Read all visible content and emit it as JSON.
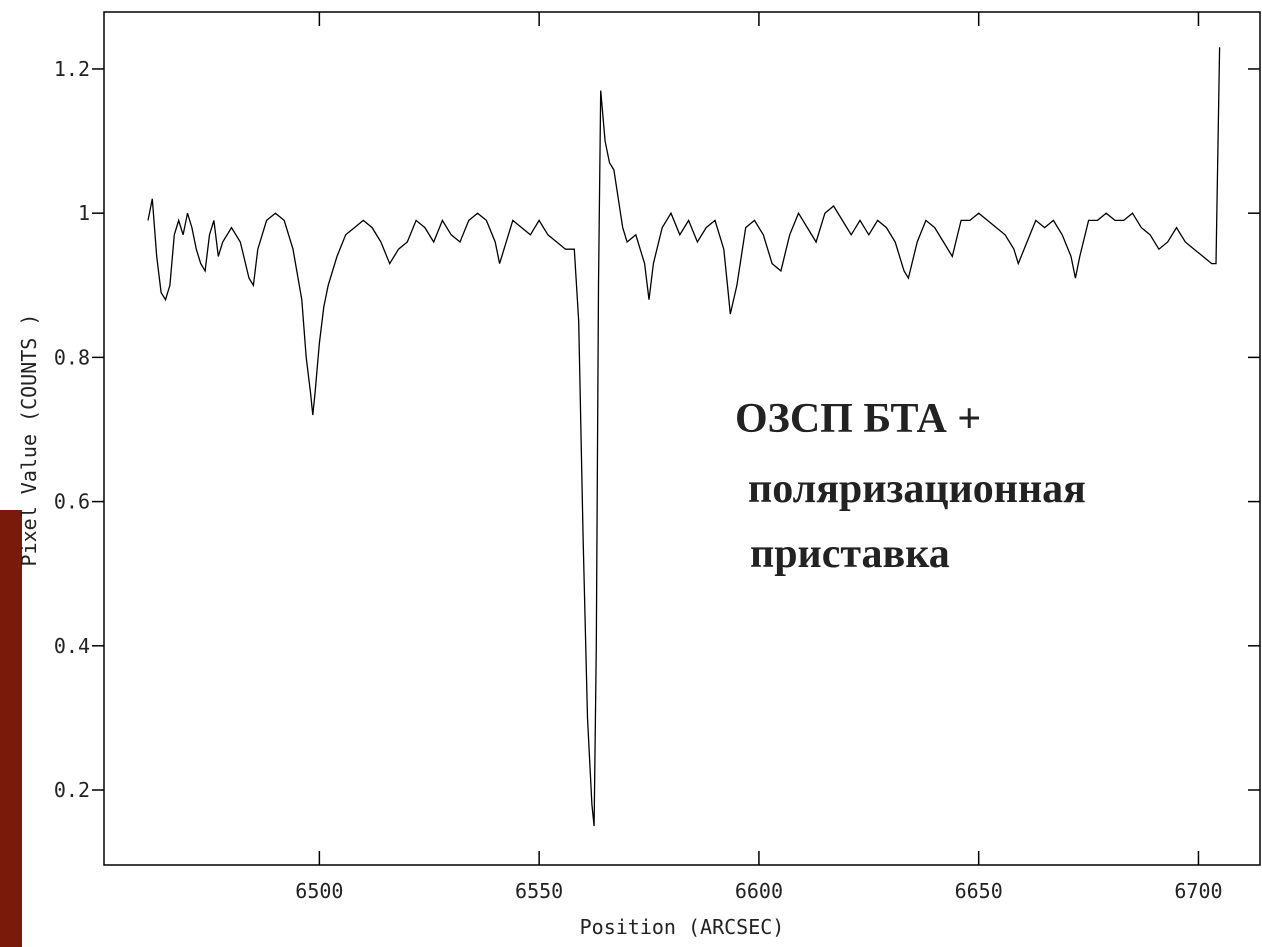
{
  "chart_data": {
    "type": "line",
    "x_label": "Position (ARCSEC)",
    "y_label": "Pixel Value (COUNTS )",
    "annotations": [
      "ОЗСП  БТА +",
      "поляризационная",
      "приставка"
    ],
    "xlim": [
      6451,
      6714
    ],
    "ylim": [
      0.096,
      1.279
    ],
    "xticks": [
      6500,
      6550,
      6600,
      6650,
      6700
    ],
    "yticks": [
      1.2,
      1,
      0.8,
      0.6,
      0.4,
      0.2
    ],
    "series": [
      {
        "color": "#000000",
        "x": [
          6461,
          6462,
          6463,
          6464,
          6465,
          6466,
          6467,
          6468,
          6469,
          6470,
          6471,
          6472,
          6473,
          6474,
          6475,
          6476,
          6477,
          6478,
          6480,
          6482,
          6484,
          6485,
          6486,
          6488,
          6490,
          6492,
          6494,
          6496,
          6497,
          6498,
          6498.5,
          6499,
          6500,
          6501,
          6502,
          6504,
          6506,
          6508,
          6510,
          6512,
          6514,
          6516,
          6518,
          6520,
          6522,
          6524,
          6526,
          6528,
          6530,
          6532,
          6534,
          6536,
          6538,
          6540,
          6541,
          6542,
          6544,
          6546,
          6548,
          6550,
          6552,
          6554,
          6556,
          6558,
          6559,
          6560,
          6561,
          6562,
          6562.5,
          6563,
          6563.5,
          6564,
          6565,
          6566,
          6567,
          6568,
          6569,
          6570,
          6572,
          6574,
          6575,
          6576,
          6578,
          6580,
          6582,
          6584,
          6586,
          6588,
          6590,
          6592,
          6593,
          6593.5,
          6595,
          6597,
          6599,
          6601,
          6603,
          6605,
          6607,
          6609,
          6611,
          6613,
          6615,
          6617,
          6619,
          6621,
          6623,
          6625,
          6627,
          6629,
          6631,
          6633,
          6634,
          6636,
          6638,
          6640,
          6642,
          6644,
          6646,
          6648,
          6650,
          6652,
          6654,
          6656,
          6658,
          6659,
          6661,
          6663,
          6665,
          6667,
          6669,
          6671,
          6672,
          6673,
          6675,
          6677,
          6679,
          6681,
          6683,
          6685,
          6687,
          6689,
          6691,
          6693,
          6695,
          6697,
          6699,
          6701,
          6703,
          6704,
          6704.8
        ],
        "values": [
          0.99,
          1.02,
          0.94,
          0.89,
          0.88,
          0.9,
          0.97,
          0.99,
          0.97,
          1.0,
          0.98,
          0.95,
          0.93,
          0.92,
          0.97,
          0.99,
          0.94,
          0.96,
          0.98,
          0.96,
          0.91,
          0.9,
          0.95,
          0.99,
          1.0,
          0.99,
          0.95,
          0.88,
          0.8,
          0.75,
          0.72,
          0.75,
          0.82,
          0.87,
          0.9,
          0.94,
          0.97,
          0.98,
          0.99,
          0.98,
          0.96,
          0.93,
          0.95,
          0.96,
          0.99,
          0.98,
          0.96,
          0.99,
          0.97,
          0.96,
          0.99,
          1.0,
          0.99,
          0.96,
          0.93,
          0.95,
          0.99,
          0.98,
          0.97,
          0.99,
          0.97,
          0.96,
          0.95,
          0.95,
          0.85,
          0.55,
          0.3,
          0.18,
          0.15,
          0.4,
          0.9,
          1.17,
          1.1,
          1.07,
          1.06,
          1.02,
          0.98,
          0.96,
          0.97,
          0.93,
          0.88,
          0.93,
          0.98,
          1.0,
          0.97,
          0.99,
          0.96,
          0.98,
          0.99,
          0.95,
          0.89,
          0.86,
          0.9,
          0.98,
          0.99,
          0.97,
          0.93,
          0.92,
          0.97,
          1.0,
          0.98,
          0.96,
          1.0,
          1.01,
          0.99,
          0.97,
          0.99,
          0.97,
          0.99,
          0.98,
          0.96,
          0.92,
          0.91,
          0.96,
          0.99,
          0.98,
          0.96,
          0.94,
          0.99,
          0.99,
          1.0,
          0.99,
          0.98,
          0.97,
          0.95,
          0.93,
          0.96,
          0.99,
          0.98,
          0.99,
          0.97,
          0.94,
          0.91,
          0.94,
          0.99,
          0.99,
          1.0,
          0.99,
          0.99,
          1.0,
          0.98,
          0.97,
          0.95,
          0.96,
          0.98,
          0.96,
          0.95,
          0.94,
          0.93,
          0.93,
          1.23
        ]
      }
    ]
  }
}
